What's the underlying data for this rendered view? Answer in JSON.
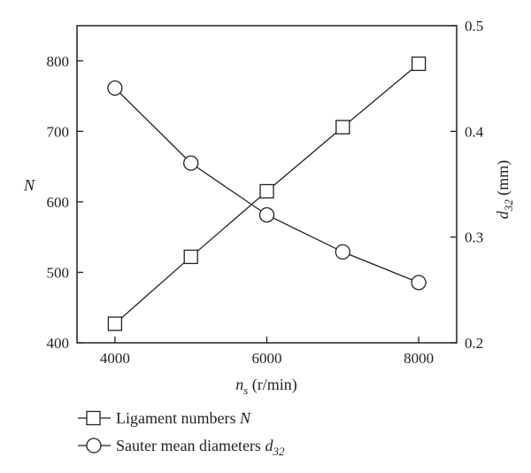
{
  "chart_data": {
    "type": "line",
    "x": [
      4000,
      5000,
      6000,
      7000,
      8000
    ],
    "xlabel": {
      "main": "n",
      "sub": "s",
      "unit": " (r/min)"
    },
    "xlim": [
      3500,
      8500
    ],
    "xticks": [
      "4000",
      "6000",
      "8000"
    ],
    "xtick_values": [
      4000,
      6000,
      8000
    ],
    "y_left": {
      "label": "N",
      "lim": [
        400,
        850
      ],
      "ticks": [
        "400",
        "500",
        "600",
        "700",
        "800"
      ],
      "tick_values": [
        400,
        500,
        600,
        700,
        800
      ]
    },
    "y_right": {
      "label": {
        "main": "d",
        "sub": "32",
        "unit": " (mm)"
      },
      "lim": [
        0.2,
        0.5
      ],
      "ticks": [
        "0.2",
        "0.3",
        "0.4",
        "0.5"
      ],
      "tick_values": [
        0.2,
        0.3,
        0.4,
        0.5
      ]
    },
    "series": [
      {
        "name": "Ligament numbers N",
        "legend_text": "Ligament numbers ",
        "legend_italic": "N",
        "axis": "left",
        "marker": "square",
        "values": [
          427,
          522,
          615,
          706,
          796
        ]
      },
      {
        "name": "Sauter mean diameters d32",
        "legend_text": "Sauter mean diameters ",
        "legend_italic": "d",
        "legend_sub": "32",
        "axis": "right",
        "marker": "circle",
        "values": [
          0.441,
          0.37,
          0.321,
          0.286,
          0.257
        ]
      }
    ],
    "legend_placement": "bottom-left, below plot",
    "grid": false,
    "colors": {
      "line": "#231f20",
      "marker_fill": "#ffffff"
    }
  }
}
